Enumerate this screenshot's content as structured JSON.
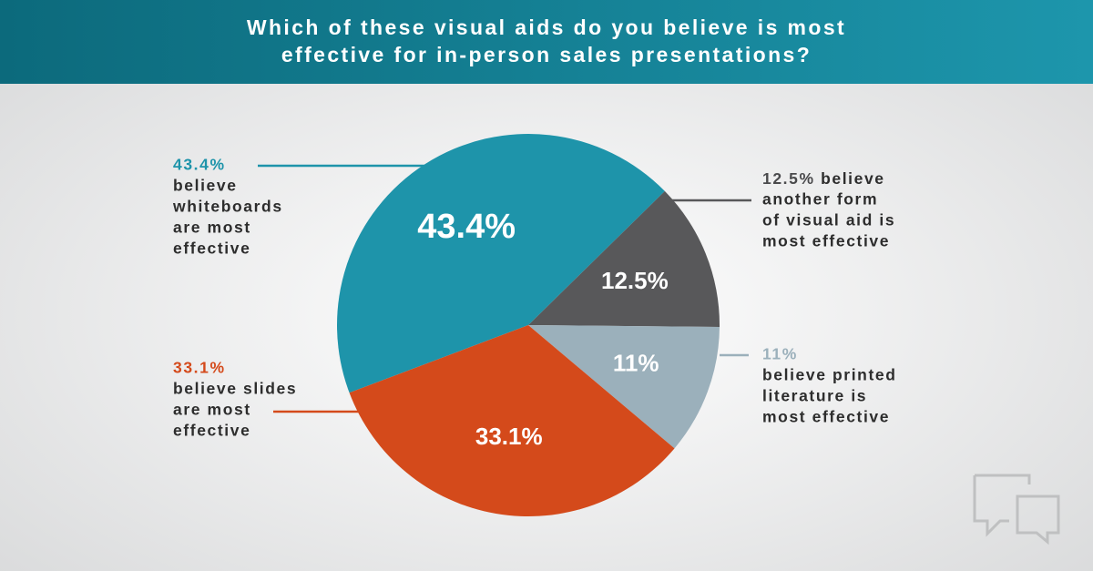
{
  "chart_data": {
    "type": "pie",
    "title": [
      "Which of these visual aids do you believe is most",
      "effective for in-person sales presentations?"
    ],
    "categories": [
      "whiteboards",
      "another form of visual aid",
      "printed literature",
      "slides"
    ],
    "values": [
      43.4,
      12.5,
      11,
      33.1
    ],
    "value_labels": [
      "43.4%",
      "12.5%",
      "11%",
      "33.1%"
    ],
    "colors": [
      "#1e94aa",
      "#58585a",
      "#9bb0bb",
      "#d44a1b"
    ],
    "annotations": [
      [
        "believe",
        "whiteboards",
        "are most",
        "effective"
      ],
      [
        "believe",
        "another form",
        "of visual aid is",
        "most effective"
      ],
      [
        "believe printed",
        "literature is",
        "most effective"
      ],
      [
        "believe slides",
        "are most",
        "effective"
      ]
    ]
  }
}
